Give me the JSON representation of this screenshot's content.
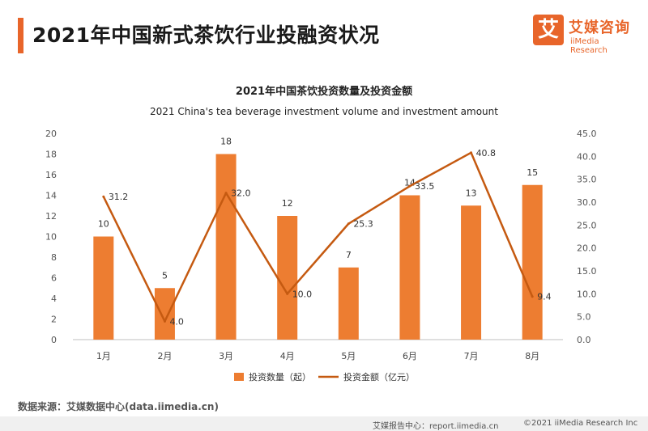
{
  "page": {
    "title": "2021年中国新式茶饮行业投融资状况",
    "logo_glyph": "艾",
    "logo_cn": "艾媒咨询",
    "logo_en": "iiMedia Research",
    "source": "数据来源：艾媒数据中心(data.iimedia.cn)",
    "report": "艾媒报告中心：report.iimedia.cn",
    "copyright": "©2021  iiMedia Research  Inc",
    "accent_color": "#e8652a"
  },
  "chart_data": {
    "type": "bar",
    "title": "2021年中国茶饮投资数量及投资金额",
    "subtitle": "2021 China's tea beverage investment volume and investment amount",
    "categories": [
      "1月",
      "2月",
      "3月",
      "4月",
      "5月",
      "6月",
      "7月",
      "8月"
    ],
    "series": [
      {
        "name": "投资数量（起）",
        "type": "bar",
        "axis": "left",
        "color": "#ed7d31",
        "values": [
          10,
          5,
          18,
          12,
          7,
          14,
          13,
          15
        ],
        "labels": [
          "10",
          "5",
          "18",
          "12",
          "7",
          "14",
          "13",
          "15"
        ]
      },
      {
        "name": "投资金额（亿元）",
        "type": "line",
        "axis": "right",
        "color": "#c55a11",
        "values": [
          31.2,
          4.0,
          32.0,
          10.0,
          25.3,
          33.5,
          40.8,
          9.4
        ],
        "labels": [
          "31.2",
          "4.0",
          "32.0",
          "10.0",
          "25.3",
          "33.5",
          "40.8",
          "9.4"
        ]
      }
    ],
    "y_left": {
      "min": 0,
      "max": 20,
      "ticks": [
        "0",
        "2",
        "4",
        "6",
        "8",
        "10",
        "12",
        "14",
        "16",
        "18",
        "20"
      ]
    },
    "y_right": {
      "min": 0,
      "max": 45,
      "ticks": [
        "0.0",
        "5.0",
        "10.0",
        "15.0",
        "20.0",
        "25.0",
        "30.0",
        "35.0",
        "40.0",
        "45.0"
      ]
    },
    "grid": false,
    "legend_position": "bottom"
  }
}
